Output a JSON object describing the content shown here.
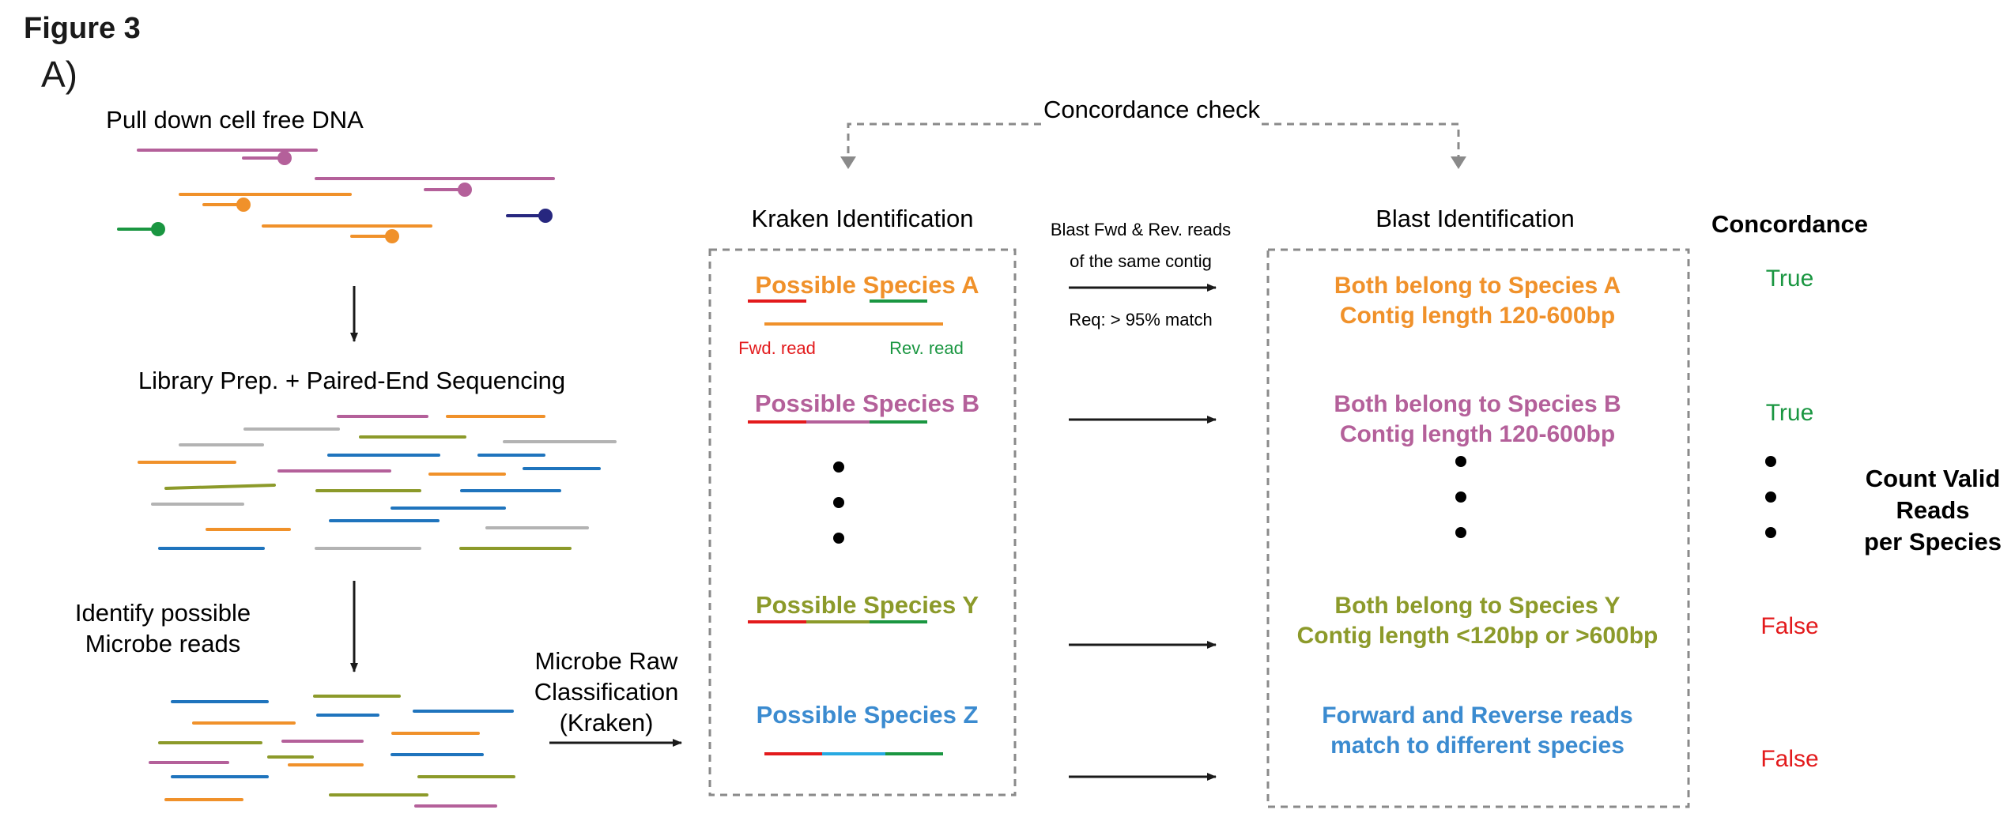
{
  "figure_label": "Figure 3",
  "panel_label": "A)",
  "colors": {
    "orange": "#f0912a",
    "purple": "#b4609a",
    "green": "#1a9641",
    "navy": "#27277f",
    "olive": "#8c9a2a",
    "blue": "#1f74bd",
    "gray": "#b3b3b3",
    "red": "#e31a1c",
    "species_a": "#f0912a",
    "species_b": "#b4609a",
    "species_y": "#8c9a2a",
    "species_z": "#3b8bd0",
    "true": "#1a9641",
    "false": "#e31a1c",
    "dash": "#8a8a8a",
    "arrow": "#1a1a1a"
  },
  "left_flow": {
    "step1": "Pull down cell free DNA",
    "step2": "Library Prep. + Paired-End Sequencing",
    "step3_line1": "Identify possible",
    "step3_line2": "Microbe reads"
  },
  "classification": {
    "line1": "Microbe Raw",
    "line2": "Classification",
    "line3": "(Kraken)"
  },
  "concordance_check": "Concordance check",
  "kraken": {
    "title": "Kraken Identification",
    "species_a": "Possible Species A",
    "species_b": "Possible Species B",
    "species_y": "Possible Species Y",
    "species_z": "Possible Species Z",
    "fwd_read": "Fwd. read",
    "rev_read": "Rev. read"
  },
  "blast_step": {
    "line1": "Blast Fwd & Rev. reads",
    "line2": "of the same contig",
    "requirement": "Req: > 95% match"
  },
  "blast": {
    "title": "Blast Identification",
    "a_line1": "Both belong to Species A",
    "a_line2": "Contig length 120-600bp",
    "b_line1": "Both belong to Species B",
    "b_line2": "Contig length 120-600bp",
    "y_line1": "Both belong to Species Y",
    "y_line2": "Contig length <120bp or >600bp",
    "z_line1": "Forward and Reverse reads",
    "z_line2": "match to different species"
  },
  "concordance": {
    "title": "Concordance",
    "a": "True",
    "b": "True",
    "y": "False",
    "z": "False"
  },
  "count_valid": {
    "line1": "Count Valid",
    "line2": "Reads",
    "line3": "per Species"
  }
}
